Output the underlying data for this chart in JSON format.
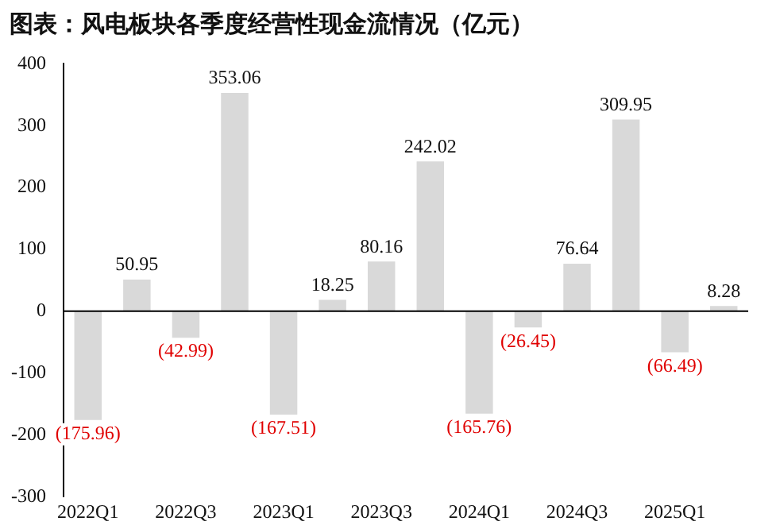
{
  "chart_data": {
    "type": "bar",
    "title": "图表：风电板块各季度经营性现金流情况（亿元）",
    "categories": [
      "2022Q1",
      null,
      "2022Q3",
      null,
      "2023Q1",
      null,
      "2023Q3",
      null,
      "2024Q1",
      null,
      "2024Q3",
      null,
      "2025Q1",
      null
    ],
    "values": [
      -175.96,
      50.95,
      -42.99,
      353.06,
      -167.51,
      18.25,
      80.16,
      242.02,
      -165.76,
      -26.45,
      76.64,
      309.95,
      -66.49,
      8.28
    ],
    "value_labels": [
      "(175.96)",
      "50.95",
      "(42.99)",
      "353.06",
      "(167.51)",
      "18.25",
      "80.16",
      "242.02",
      "(165.76)",
      "(26.45)",
      "76.64",
      "309.95",
      "(66.49)",
      "8.28"
    ],
    "color": "#d9d9d9",
    "ylim": [
      -300,
      400
    ],
    "yticks": [
      -300,
      -200,
      -100,
      0,
      100,
      200,
      300,
      400
    ],
    "ref_lines": [
      {
        "axis": "y",
        "value": 0,
        "color": "#000000"
      }
    ],
    "grid": false,
    "legend": false
  }
}
